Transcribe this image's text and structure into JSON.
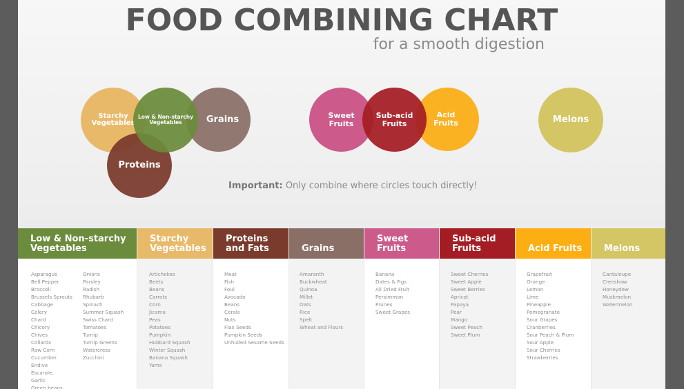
{
  "header": {
    "title": "FOOD COMBINING CHART",
    "subtitle": "for a smooth digestion"
  },
  "circles": [
    {
      "label": "Starchy\nVegetables",
      "color": "#e9b96a"
    },
    {
      "label": "Low & Non-starchy\nVegetables",
      "color": "#6b8c3c"
    },
    {
      "label": "Grains",
      "color": "#8a6f67"
    },
    {
      "label": "Proteins",
      "color": "#7a3a2c"
    },
    {
      "label": "Sweet\nFruits",
      "color": "#cc5a8a"
    },
    {
      "label": "Sub-acid\nFruits",
      "color": "#a51d24"
    },
    {
      "label": "Acid\nFruits",
      "color": "#fcae13"
    },
    {
      "label": "Melons",
      "color": "#d4c665"
    }
  ],
  "note": {
    "bold": "Important:",
    "text": " Only combine where circles touch directly!"
  },
  "columns": [
    {
      "header": "Low & Non-starchy\nVegetables",
      "color": "#6b8c3c",
      "items": [
        "Asparagus",
        "Bell Pepper",
        "Broccoli",
        "Brussels Sprouts",
        "Cabbage",
        "Celery",
        "Chard",
        "Chicory",
        "Chives",
        "Collards",
        "Raw Corn",
        "Cucumber",
        "Endive",
        "Escarole,",
        "Garlic",
        "Green beans"
      ],
      "items2": [
        "Onions",
        "Parsley",
        "Radish",
        "Rhubarb",
        "Spinach",
        "Summer Squash",
        "Swiss Chard",
        "Tomatoes",
        "Turnip",
        "Turnip Greens",
        "Watercress",
        "Zucchini"
      ]
    },
    {
      "header": "Starchy\nVegetables",
      "color": "#e9b96a",
      "items": [
        "Artichokes",
        "Beets",
        "Beans",
        "Carrots",
        "Corn",
        "Jicama",
        "Peas",
        "Potatoes",
        "Pumpkin",
        "Hubbard Squash",
        "Winter Squash",
        "Banana Squash",
        "Yams"
      ]
    },
    {
      "header": "Proteins\nand Fats",
      "color": "#7a3a2c",
      "items": [
        "Meat",
        "Fish",
        "Foul",
        "Avocado",
        "Beans",
        "Cerals",
        "Nuts",
        "Flax Seeds",
        "Pumpkin Seeds",
        "Unhulled Sesame Seeds"
      ]
    },
    {
      "header": "Grains",
      "color": "#8a6f67",
      "items": [
        "Amaranth",
        "Buckwheat",
        "Quinoa",
        "Millet",
        "Oats",
        "Rice",
        "Spelt",
        "Wheat and Flours"
      ]
    },
    {
      "header": "Sweet Fruits",
      "color": "#cc5a8a",
      "items": [
        "Banana",
        "Dates & Figs",
        "All Dried Fruit",
        "Persimmon",
        "Prunes",
        "Sweet Grapes"
      ]
    },
    {
      "header": "Sub-acid\nFruits",
      "color": "#a51d24",
      "items": [
        "Sweet Cherries",
        "Sweet Apple",
        "Sweet Berries",
        "Apricot",
        "Papaya",
        "Pear",
        "Mango",
        "Sweet Peach",
        "Sweet Plum"
      ]
    },
    {
      "header": "Acid Fruits",
      "color": "#fcae13",
      "items": [
        "Grapefruit",
        "Orange",
        "Lemon",
        "Lime",
        "Pineapple",
        "Pomegranate",
        "Sour Grapes",
        "Cranberries",
        "Sour Peach & Plum",
        "Sour Apple",
        "Sour Cherries",
        "Strawberries"
      ]
    },
    {
      "header": "Melons",
      "color": "#d4c665",
      "items": [
        "Cantaloupe",
        "Crenshaw",
        "Honeydew",
        "Muskmelon",
        "Watermelon"
      ]
    }
  ]
}
